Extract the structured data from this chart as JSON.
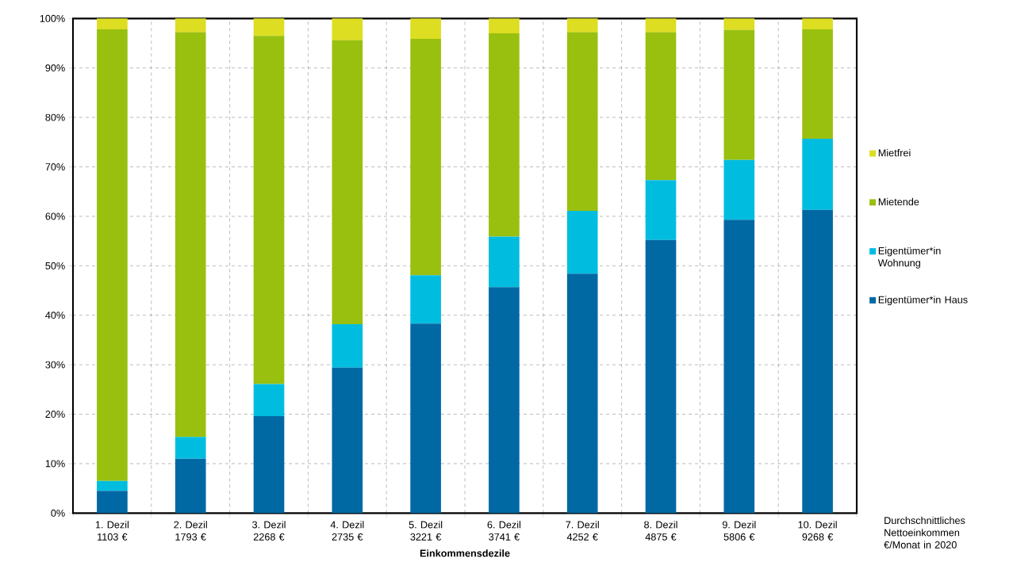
{
  "chart_data": {
    "type": "bar",
    "stacked": true,
    "xlabel": "Einkommensdezile",
    "categories": [
      "1. Dezil 1103 €",
      "2. Dezil 1793 €",
      "3. Dezil 2268 €",
      "4. Dezil 2735 €",
      "5. Dezil 3221 €",
      "6. Dezil 3741 €",
      "7. Dezil 4252 €",
      "8. Dezil 4875 €",
      "9. Dezil 5806 €",
      "10. Dezil 9268 €"
    ],
    "series": [
      {
        "name": "Eigentümer*in Haus",
        "color": "#0069a4",
        "values": [
          4.5,
          11.0,
          19.6,
          29.4,
          38.3,
          45.7,
          48.4,
          55.2,
          59.3,
          61.3
        ]
      },
      {
        "name": "Eigentümer*in Wohnung",
        "color": "#00bde0",
        "values": [
          2.0,
          4.4,
          6.5,
          8.8,
          9.8,
          10.2,
          12.7,
          12.1,
          12.1,
          14.4
        ]
      },
      {
        "name": "Mietende",
        "color": "#99c00f",
        "values": [
          91.3,
          81.8,
          70.4,
          57.4,
          47.8,
          41.1,
          36.1,
          29.9,
          26.3,
          22.1
        ]
      },
      {
        "name": "Mietfrei",
        "color": "#dddd22",
        "values": [
          2.2,
          2.8,
          3.5,
          4.4,
          4.1,
          3.0,
          2.8,
          2.8,
          2.3,
          2.2
        ]
      }
    ],
    "ylim": [
      0,
      100
    ],
    "yticks": [
      {
        "value": 0,
        "label": "0%"
      },
      {
        "value": 10,
        "label": "10%"
      },
      {
        "value": 20,
        "label": "20%"
      },
      {
        "value": 30,
        "label": "30%"
      },
      {
        "value": 40,
        "label": "40%"
      },
      {
        "value": 50,
        "label": "50%"
      },
      {
        "value": 60,
        "label": "60%"
      },
      {
        "value": 70,
        "label": "70%"
      },
      {
        "value": 80,
        "label": "80%"
      },
      {
        "value": 90,
        "label": "90%"
      },
      {
        "value": 100,
        "label": "100%"
      }
    ],
    "grid": true,
    "legend": "right",
    "annotations": [
      "Durchschnittliches Nettoeinkommen €/Monat in 2020"
    ]
  }
}
